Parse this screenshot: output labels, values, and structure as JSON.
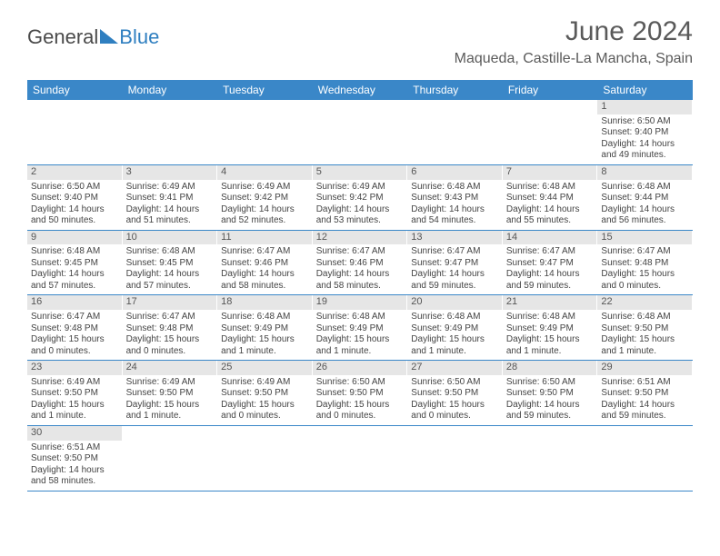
{
  "logo": {
    "text1": "General",
    "text2": "Blue"
  },
  "title": "June 2024",
  "location": "Maqueda, Castille-La Mancha, Spain",
  "colors": {
    "header_bar": "#3a87c8",
    "header_text": "#ffffff",
    "daynum_bg": "#e6e6e6",
    "row_border": "#3a87c8",
    "logo_blue": "#2f7fc0"
  },
  "daysOfWeek": [
    "Sunday",
    "Monday",
    "Tuesday",
    "Wednesday",
    "Thursday",
    "Friday",
    "Saturday"
  ],
  "weeks": [
    [
      null,
      null,
      null,
      null,
      null,
      null,
      {
        "n": "1",
        "sr": "Sunrise: 6:50 AM",
        "ss": "Sunset: 9:40 PM",
        "d1": "Daylight: 14 hours",
        "d2": "and 49 minutes."
      }
    ],
    [
      {
        "n": "2",
        "sr": "Sunrise: 6:50 AM",
        "ss": "Sunset: 9:40 PM",
        "d1": "Daylight: 14 hours",
        "d2": "and 50 minutes."
      },
      {
        "n": "3",
        "sr": "Sunrise: 6:49 AM",
        "ss": "Sunset: 9:41 PM",
        "d1": "Daylight: 14 hours",
        "d2": "and 51 minutes."
      },
      {
        "n": "4",
        "sr": "Sunrise: 6:49 AM",
        "ss": "Sunset: 9:42 PM",
        "d1": "Daylight: 14 hours",
        "d2": "and 52 minutes."
      },
      {
        "n": "5",
        "sr": "Sunrise: 6:49 AM",
        "ss": "Sunset: 9:42 PM",
        "d1": "Daylight: 14 hours",
        "d2": "and 53 minutes."
      },
      {
        "n": "6",
        "sr": "Sunrise: 6:48 AM",
        "ss": "Sunset: 9:43 PM",
        "d1": "Daylight: 14 hours",
        "d2": "and 54 minutes."
      },
      {
        "n": "7",
        "sr": "Sunrise: 6:48 AM",
        "ss": "Sunset: 9:44 PM",
        "d1": "Daylight: 14 hours",
        "d2": "and 55 minutes."
      },
      {
        "n": "8",
        "sr": "Sunrise: 6:48 AM",
        "ss": "Sunset: 9:44 PM",
        "d1": "Daylight: 14 hours",
        "d2": "and 56 minutes."
      }
    ],
    [
      {
        "n": "9",
        "sr": "Sunrise: 6:48 AM",
        "ss": "Sunset: 9:45 PM",
        "d1": "Daylight: 14 hours",
        "d2": "and 57 minutes."
      },
      {
        "n": "10",
        "sr": "Sunrise: 6:48 AM",
        "ss": "Sunset: 9:45 PM",
        "d1": "Daylight: 14 hours",
        "d2": "and 57 minutes."
      },
      {
        "n": "11",
        "sr": "Sunrise: 6:47 AM",
        "ss": "Sunset: 9:46 PM",
        "d1": "Daylight: 14 hours",
        "d2": "and 58 minutes."
      },
      {
        "n": "12",
        "sr": "Sunrise: 6:47 AM",
        "ss": "Sunset: 9:46 PM",
        "d1": "Daylight: 14 hours",
        "d2": "and 58 minutes."
      },
      {
        "n": "13",
        "sr": "Sunrise: 6:47 AM",
        "ss": "Sunset: 9:47 PM",
        "d1": "Daylight: 14 hours",
        "d2": "and 59 minutes."
      },
      {
        "n": "14",
        "sr": "Sunrise: 6:47 AM",
        "ss": "Sunset: 9:47 PM",
        "d1": "Daylight: 14 hours",
        "d2": "and 59 minutes."
      },
      {
        "n": "15",
        "sr": "Sunrise: 6:47 AM",
        "ss": "Sunset: 9:48 PM",
        "d1": "Daylight: 15 hours",
        "d2": "and 0 minutes."
      }
    ],
    [
      {
        "n": "16",
        "sr": "Sunrise: 6:47 AM",
        "ss": "Sunset: 9:48 PM",
        "d1": "Daylight: 15 hours",
        "d2": "and 0 minutes."
      },
      {
        "n": "17",
        "sr": "Sunrise: 6:47 AM",
        "ss": "Sunset: 9:48 PM",
        "d1": "Daylight: 15 hours",
        "d2": "and 0 minutes."
      },
      {
        "n": "18",
        "sr": "Sunrise: 6:48 AM",
        "ss": "Sunset: 9:49 PM",
        "d1": "Daylight: 15 hours",
        "d2": "and 1 minute."
      },
      {
        "n": "19",
        "sr": "Sunrise: 6:48 AM",
        "ss": "Sunset: 9:49 PM",
        "d1": "Daylight: 15 hours",
        "d2": "and 1 minute."
      },
      {
        "n": "20",
        "sr": "Sunrise: 6:48 AM",
        "ss": "Sunset: 9:49 PM",
        "d1": "Daylight: 15 hours",
        "d2": "and 1 minute."
      },
      {
        "n": "21",
        "sr": "Sunrise: 6:48 AM",
        "ss": "Sunset: 9:49 PM",
        "d1": "Daylight: 15 hours",
        "d2": "and 1 minute."
      },
      {
        "n": "22",
        "sr": "Sunrise: 6:48 AM",
        "ss": "Sunset: 9:50 PM",
        "d1": "Daylight: 15 hours",
        "d2": "and 1 minute."
      }
    ],
    [
      {
        "n": "23",
        "sr": "Sunrise: 6:49 AM",
        "ss": "Sunset: 9:50 PM",
        "d1": "Daylight: 15 hours",
        "d2": "and 1 minute."
      },
      {
        "n": "24",
        "sr": "Sunrise: 6:49 AM",
        "ss": "Sunset: 9:50 PM",
        "d1": "Daylight: 15 hours",
        "d2": "and 1 minute."
      },
      {
        "n": "25",
        "sr": "Sunrise: 6:49 AM",
        "ss": "Sunset: 9:50 PM",
        "d1": "Daylight: 15 hours",
        "d2": "and 0 minutes."
      },
      {
        "n": "26",
        "sr": "Sunrise: 6:50 AM",
        "ss": "Sunset: 9:50 PM",
        "d1": "Daylight: 15 hours",
        "d2": "and 0 minutes."
      },
      {
        "n": "27",
        "sr": "Sunrise: 6:50 AM",
        "ss": "Sunset: 9:50 PM",
        "d1": "Daylight: 15 hours",
        "d2": "and 0 minutes."
      },
      {
        "n": "28",
        "sr": "Sunrise: 6:50 AM",
        "ss": "Sunset: 9:50 PM",
        "d1": "Daylight: 14 hours",
        "d2": "and 59 minutes."
      },
      {
        "n": "29",
        "sr": "Sunrise: 6:51 AM",
        "ss": "Sunset: 9:50 PM",
        "d1": "Daylight: 14 hours",
        "d2": "and 59 minutes."
      }
    ],
    [
      {
        "n": "30",
        "sr": "Sunrise: 6:51 AM",
        "ss": "Sunset: 9:50 PM",
        "d1": "Daylight: 14 hours",
        "d2": "and 58 minutes."
      },
      null,
      null,
      null,
      null,
      null,
      null
    ]
  ]
}
